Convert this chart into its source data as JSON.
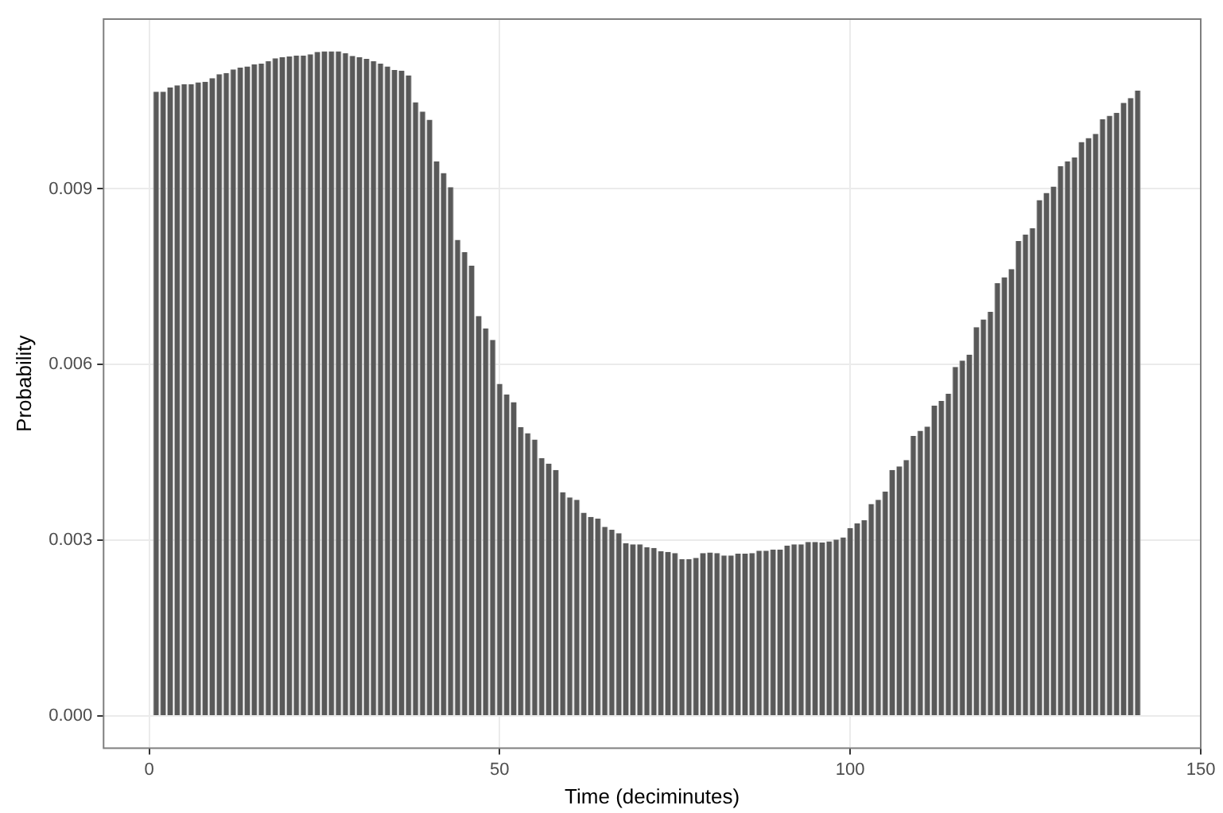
{
  "chart_data": {
    "type": "bar",
    "xlabel": "Time (deciminutes)",
    "ylabel": "Probability",
    "x": [
      1,
      2,
      3,
      4,
      5,
      6,
      7,
      8,
      9,
      10,
      11,
      12,
      13,
      14,
      15,
      16,
      17,
      18,
      19,
      20,
      21,
      22,
      23,
      24,
      25,
      26,
      27,
      28,
      29,
      30,
      31,
      32,
      33,
      34,
      35,
      36,
      37,
      38,
      39,
      40,
      41,
      42,
      43,
      44,
      45,
      46,
      47,
      48,
      49,
      50,
      51,
      52,
      53,
      54,
      55,
      56,
      57,
      58,
      59,
      60,
      61,
      62,
      63,
      64,
      65,
      66,
      67,
      68,
      69,
      70,
      71,
      72,
      73,
      74,
      75,
      76,
      77,
      78,
      79,
      80,
      81,
      82,
      83,
      84,
      85,
      86,
      87,
      88,
      89,
      90,
      91,
      92,
      93,
      94,
      95,
      96,
      97,
      98,
      99,
      100,
      101,
      102,
      103,
      104,
      105,
      106,
      107,
      108,
      109,
      110,
      111,
      112,
      113,
      114,
      115,
      116,
      117,
      118,
      119,
      120,
      121,
      122,
      123,
      124,
      125,
      126,
      127,
      128,
      129,
      130,
      131,
      132,
      133,
      134,
      135,
      136,
      137,
      138,
      139,
      140,
      141
    ],
    "values": [
      0.01066,
      0.01066,
      0.01073,
      0.01077,
      0.01079,
      0.01079,
      0.01082,
      0.01083,
      0.01089,
      0.01096,
      0.01098,
      0.01104,
      0.01107,
      0.01109,
      0.01113,
      0.01114,
      0.01118,
      0.01123,
      0.01125,
      0.01126,
      0.01128,
      0.01128,
      0.0113,
      0.01134,
      0.01135,
      0.01135,
      0.01135,
      0.01132,
      0.01127,
      0.01125,
      0.01122,
      0.01118,
      0.01114,
      0.01109,
      0.01103,
      0.01102,
      0.01094,
      0.01048,
      0.01032,
      0.01018,
      0.00947,
      0.00927,
      0.00903,
      0.00813,
      0.00792,
      0.00769,
      0.00683,
      0.00662,
      0.00642,
      0.00567,
      0.00549,
      0.00536,
      0.00493,
      0.00483,
      0.00472,
      0.0044,
      0.00431,
      0.0042,
      0.00382,
      0.00373,
      0.00369,
      0.00347,
      0.0034,
      0.00337,
      0.00323,
      0.00318,
      0.00312,
      0.00295,
      0.00293,
      0.00293,
      0.00288,
      0.00287,
      0.00281,
      0.0028,
      0.00278,
      0.00268,
      0.00268,
      0.0027,
      0.00278,
      0.00279,
      0.00278,
      0.00274,
      0.00274,
      0.00277,
      0.00277,
      0.00278,
      0.00282,
      0.00282,
      0.00284,
      0.00284,
      0.00291,
      0.00293,
      0.00293,
      0.00297,
      0.00297,
      0.00296,
      0.00298,
      0.00301,
      0.00305,
      0.00321,
      0.00329,
      0.00334,
      0.00362,
      0.00369,
      0.00383,
      0.0042,
      0.00426,
      0.00437,
      0.00478,
      0.00487,
      0.00494,
      0.0053,
      0.00538,
      0.0055,
      0.00596,
      0.00607,
      0.00617,
      0.00664,
      0.00677,
      0.0069,
      0.00739,
      0.00749,
      0.00763,
      0.00811,
      0.00822,
      0.00833,
      0.00881,
      0.00893,
      0.00904,
      0.00939,
      0.00947,
      0.00954,
      0.0098,
      0.00987,
      0.00994,
      0.01019,
      0.01025,
      0.0103,
      0.01047,
      0.01055,
      0.01068
    ],
    "color": "#595959",
    "xlim": [
      -6.5,
      150
    ],
    "xticks": [
      0,
      50,
      100,
      150
    ],
    "ylim": [
      -0.00055,
      0.0119
    ],
    "yticks": [
      {
        "value": 0,
        "label": "0.000"
      },
      0.003,
      0.006,
      0.009
    ],
    "grid": true,
    "legend": false
  }
}
